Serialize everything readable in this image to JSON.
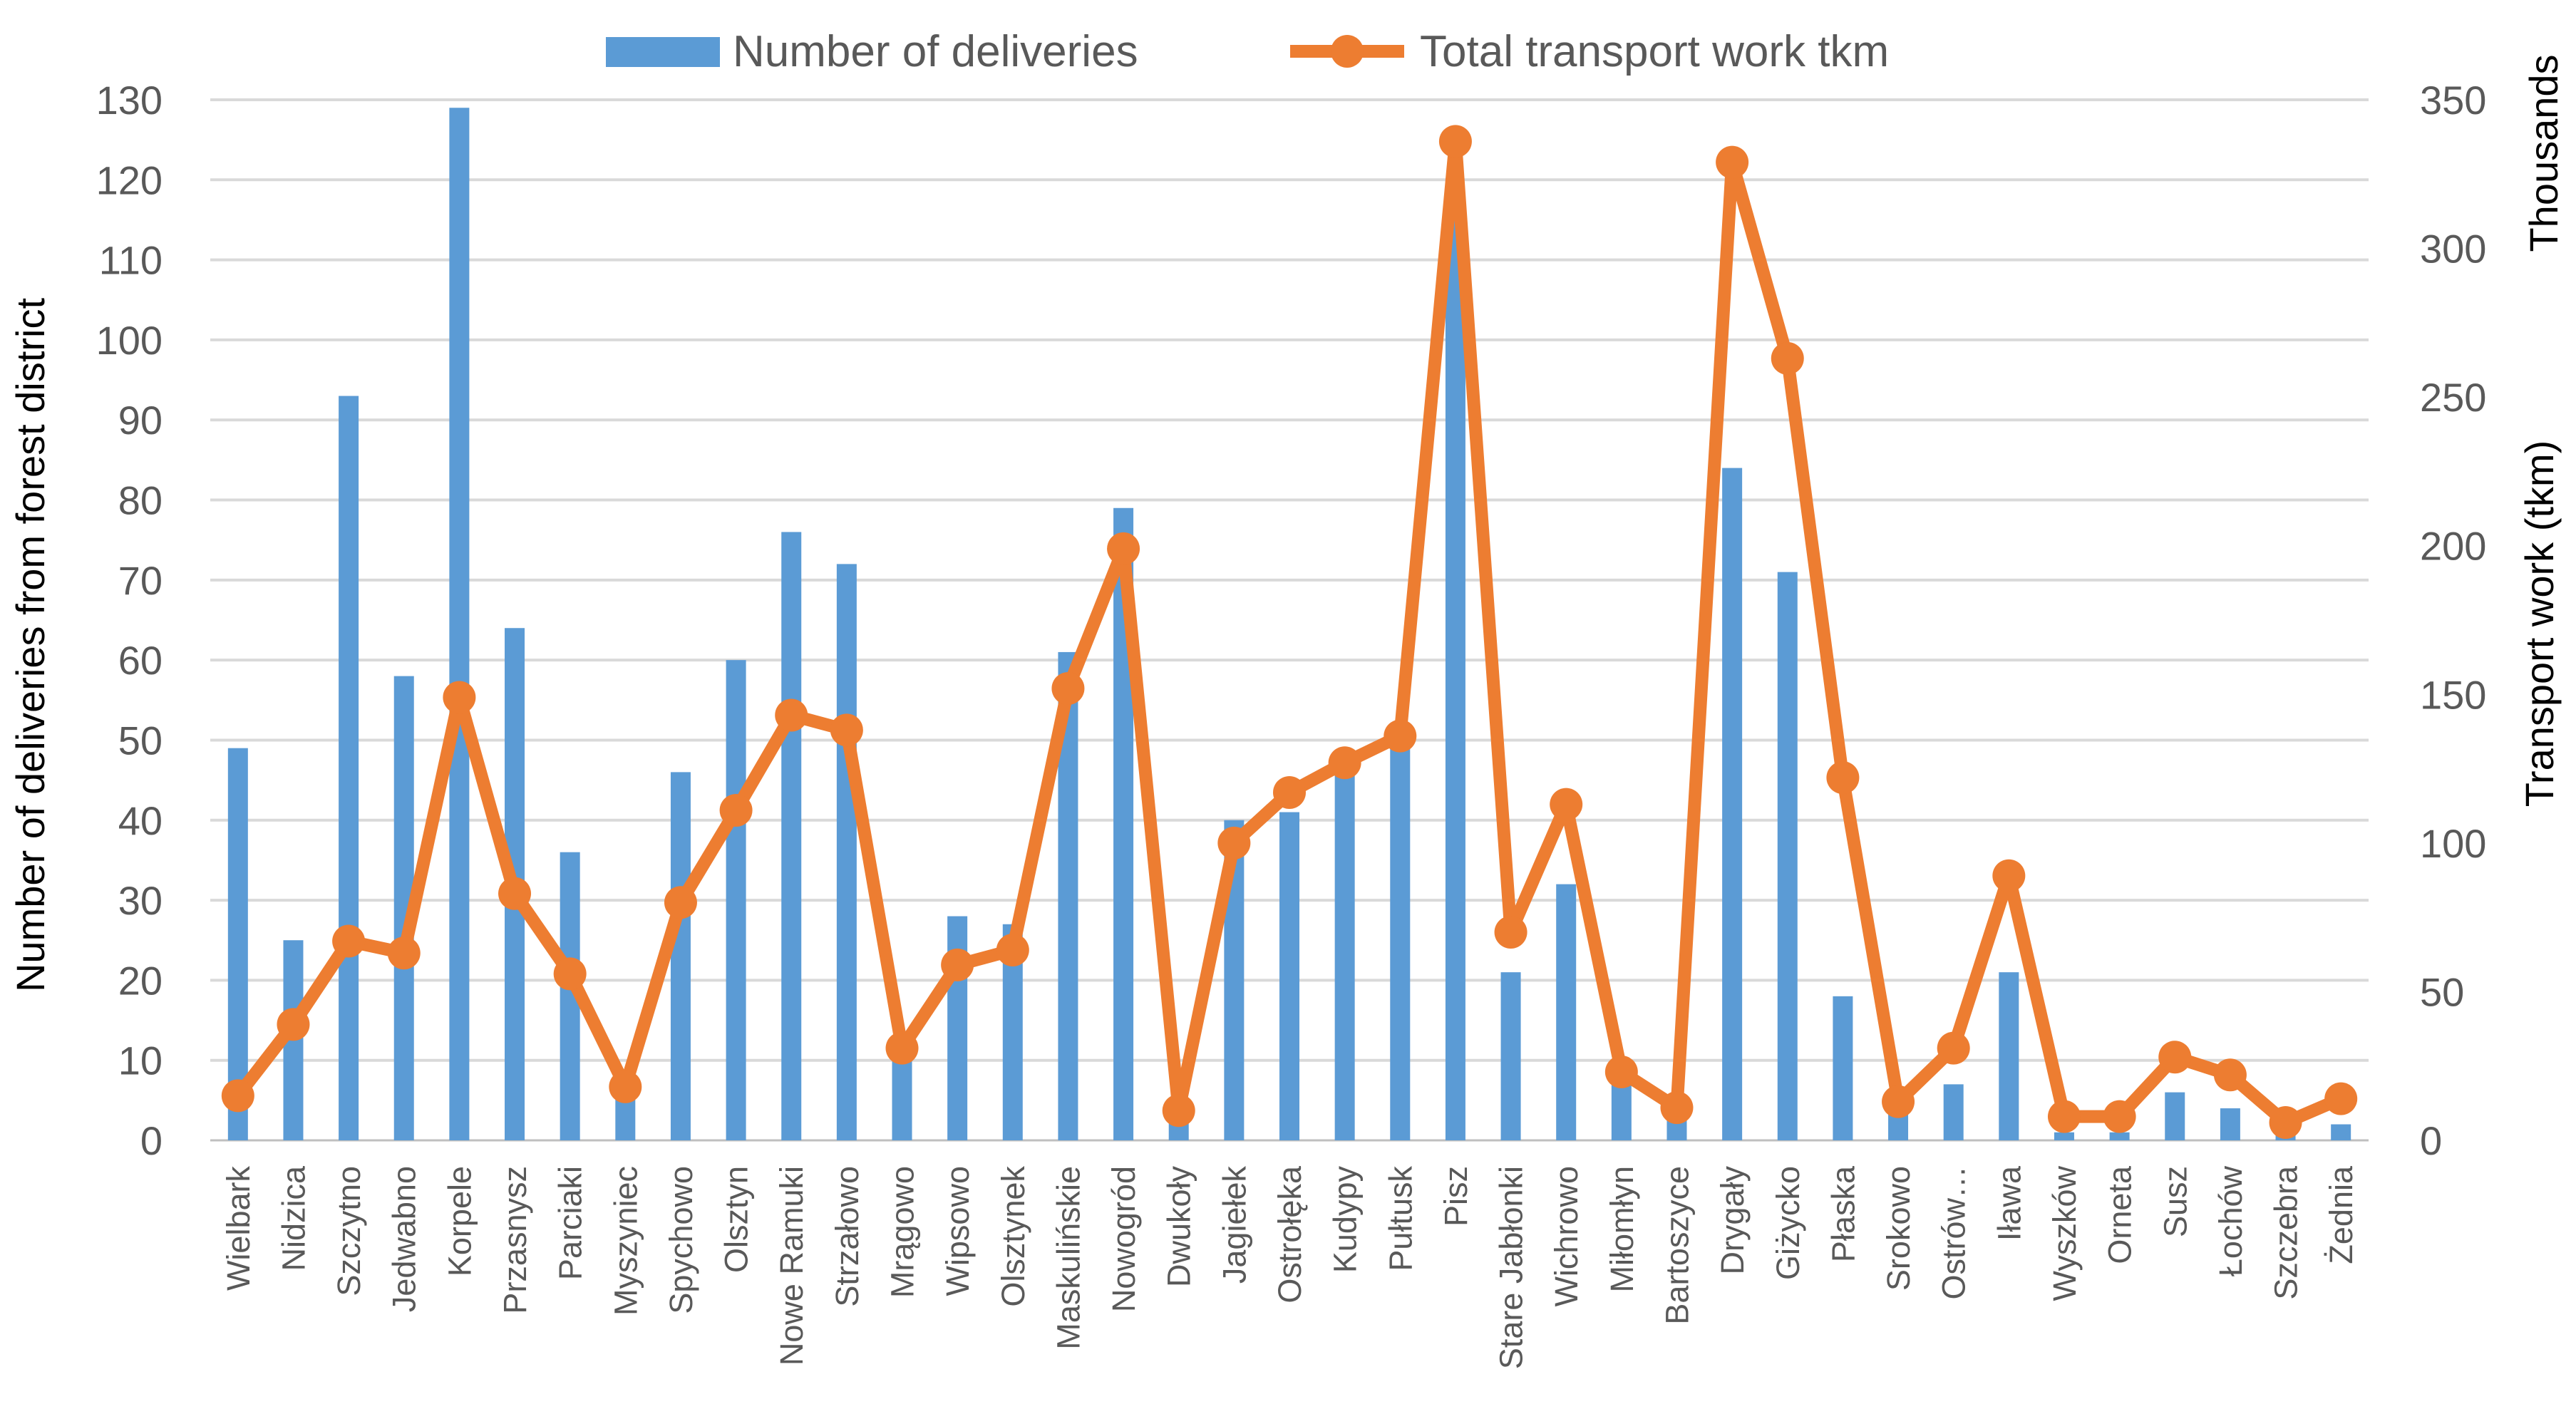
{
  "chart_data": {
    "type": "bar+line",
    "categories": [
      "Wielbark",
      "Nidzica",
      "Szczytno",
      "Jedwabno",
      "Korpele",
      "Przasnysz",
      "Parciaki",
      "Myszyniec",
      "Spychowo",
      "Olsztyn",
      "Nowe Ramuki",
      "Strzałowo",
      "Mrągowo",
      "Wipsowo",
      "Olsztynek",
      "Maskulińskie",
      "Nowogród",
      "Dwukoły",
      "Jagiełek",
      "Ostrołęka",
      "Kudypy",
      "Pułtusk",
      "Pisz",
      "Stare Jabłonki",
      "Wichrowo",
      "Miłomłyn",
      "Bartoszyce",
      "Drygały",
      "Giżycko",
      "Płaska",
      "Srokowo",
      "Ostrów…",
      "Iława",
      "Wyszków",
      "Orneta",
      "Susz",
      "Łochów",
      "Szczebra",
      "Żednia"
    ],
    "series": [
      {
        "name": "Number of deliveries",
        "type": "bar",
        "axis": "left",
        "color": "#5B9BD5",
        "values": [
          49,
          25,
          93,
          58,
          129,
          64,
          36,
          8,
          46,
          60,
          76,
          72,
          13,
          28,
          27,
          61,
          79,
          3,
          40,
          41,
          48,
          51,
          115,
          21,
          32,
          10,
          5,
          84,
          71,
          18,
          4,
          7,
          21,
          1,
          1,
          6,
          4,
          2,
          2
        ]
      },
      {
        "name": "Total transport work tkm",
        "type": "line",
        "axis": "right",
        "color": "#ED7D31",
        "values": [
          15,
          39,
          67,
          63,
          149,
          83,
          56,
          18,
          80,
          111,
          143,
          138,
          31,
          59,
          64,
          152,
          199,
          10,
          100,
          117,
          127,
          136,
          336,
          70,
          113,
          23,
          11,
          329,
          263,
          122,
          13,
          31,
          89,
          8,
          8,
          28,
          22,
          6,
          14
        ]
      }
    ],
    "left_axis": {
      "label": "Number of deliveries from forest district",
      "min": 0,
      "max": 130,
      "step": 10
    },
    "right_axis": {
      "label": "Transport work (tkm)",
      "unit_label": "Thousands",
      "min": 0,
      "max": 350,
      "step": 50
    },
    "legend": {
      "position": "top-center",
      "entries": [
        "Number of deliveries",
        "Total transport work tkm"
      ]
    },
    "grid": true
  }
}
